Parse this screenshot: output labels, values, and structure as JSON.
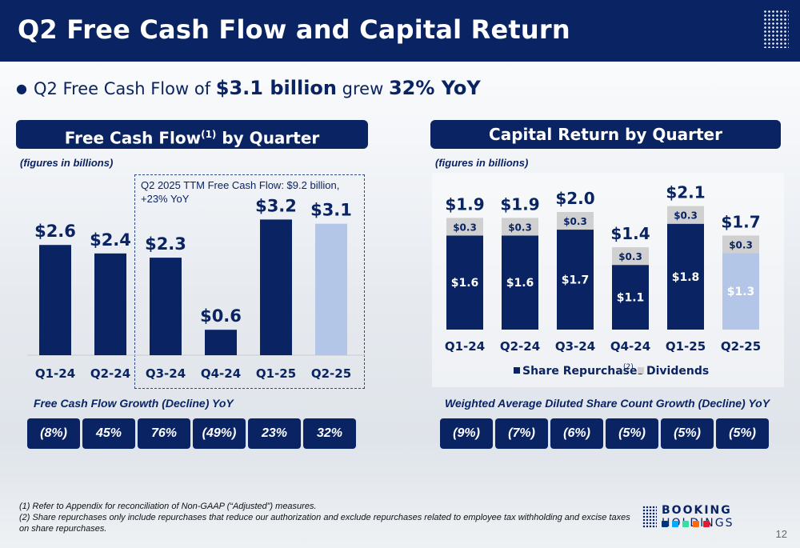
{
  "header": {
    "title": "Q2 Free Cash Flow and Capital Return"
  },
  "bullet": {
    "prefix": "Q2 Free Cash Flow of ",
    "amount": "$3.1 billion",
    "middle": " grew ",
    "growth": "32% YoY"
  },
  "left_panel": {
    "title": "Free Cash Flow",
    "title_sup": "(1)",
    "title_suffix": " by Quarter",
    "note": "(figures in billions)",
    "ttm_text": "Q2 2025 TTM Free Cash Flow: $9.2 billion, +23% YoY",
    "growth_label": "Free Cash Flow Growth (Decline) YoY",
    "growth_values": [
      "(8%)",
      "45%",
      "76%",
      "(49%)",
      "23%",
      "32%"
    ]
  },
  "right_panel": {
    "title": "Capital Return by Quarter",
    "note": "(figures in billions)",
    "growth_label": "Weighted Average Diluted Share Count Growth (Decline) YoY",
    "growth_values": [
      "(9%)",
      "(7%)",
      "(6%)",
      "(5%)",
      "(5%)",
      "(5%)"
    ]
  },
  "chart_data": [
    {
      "type": "bar",
      "categories": [
        "Q1-24",
        "Q2-24",
        "Q3-24",
        "Q4-24",
        "Q1-25",
        "Q2-25"
      ],
      "values": [
        2.6,
        2.4,
        2.3,
        0.6,
        3.2,
        3.1
      ],
      "value_labels": [
        "$2.6",
        "$2.4",
        "$2.3",
        "$0.6",
        "$3.2",
        "$3.1"
      ],
      "highlight_last": true,
      "colors": {
        "bar": "#0a2463",
        "highlight": "#b4c6e7"
      }
    },
    {
      "type": "bar",
      "stacked": true,
      "categories": [
        "Q1-24",
        "Q2-24",
        "Q3-24",
        "Q4-24",
        "Q1-25",
        "Q2-25"
      ],
      "series": [
        {
          "name": "Share Repurchases",
          "sup": "(2)",
          "values": [
            1.6,
            1.6,
            1.7,
            1.1,
            1.8,
            1.3
          ],
          "labels": [
            "$1.6",
            "$1.6",
            "$1.7",
            "$1.1",
            "$1.8",
            "$1.3"
          ]
        },
        {
          "name": "Dividends",
          "values": [
            0.3,
            0.3,
            0.3,
            0.3,
            0.3,
            0.3
          ],
          "labels": [
            "$0.3",
            "$0.3",
            "$0.3",
            "$0.3",
            "$0.3",
            "$0.3"
          ]
        }
      ],
      "totals": [
        "$1.9",
        "$1.9",
        "$2.0",
        "$1.4",
        "$2.1",
        "$1.7"
      ],
      "legend_position": "bottom",
      "colors": {
        "repurchases": "#0a2463",
        "repurchases_highlight": "#b4c6e7",
        "dividends": "#d0d0d0"
      }
    }
  ],
  "footnotes": [
    "(1) Refer to Appendix for reconciliation of Non-GAAP (“Adjusted”) measures.",
    "(2) Share repurchases only include repurchases that reduce our authorization and exclude repurchases related to employee tax withholding and excise taxes on share repurchases."
  ],
  "logo": {
    "bold": "BOOKING",
    "rest": " HOLDINGS"
  },
  "page_number": "12"
}
